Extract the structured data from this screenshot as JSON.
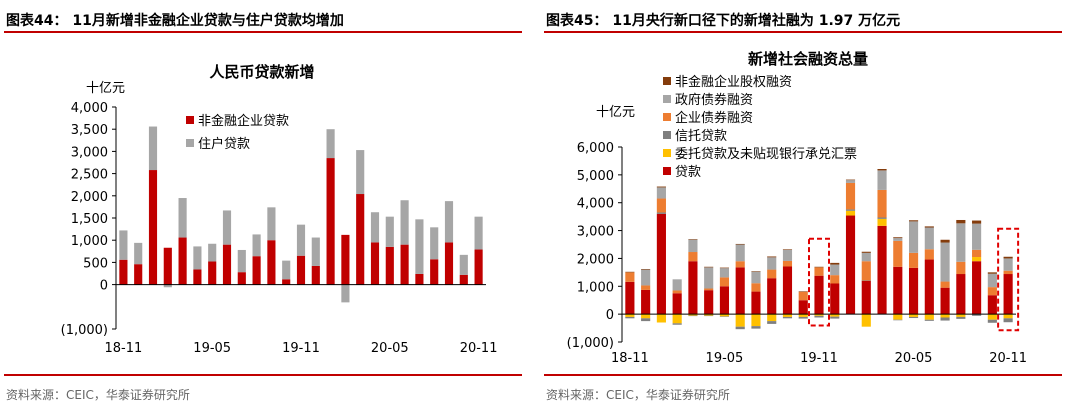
{
  "left": {
    "figure_title": "图表44：  11月新增非金融企业贷款与住户贷款均增加",
    "source": "资料来源：CEIC，华泰证券研究所",
    "chart_data": {
      "type": "bar",
      "stacked": true,
      "title": "人民币贷款新增",
      "ylabel": "十亿元",
      "ylim": [
        -1000,
        4000
      ],
      "yticks": [
        "4,000",
        "3,500",
        "3,000",
        "2,500",
        "2,000",
        "1,500",
        "1,000",
        "500",
        "0",
        "(1,000)"
      ],
      "ytick_values": [
        4000,
        3500,
        3000,
        2500,
        2000,
        1500,
        1000,
        500,
        0,
        -1000
      ],
      "categories": [
        "2018-11",
        "2018-12",
        "2019-01",
        "2019-02",
        "2019-03",
        "2019-04",
        "2019-05",
        "2019-06",
        "2019-07",
        "2019-08",
        "2019-09",
        "2019-10",
        "2019-11",
        "2019-12",
        "2020-01",
        "2020-02",
        "2020-03",
        "2020-04",
        "2020-05",
        "2020-06",
        "2020-07",
        "2020-08",
        "2020-09",
        "2020-10",
        "2020-11"
      ],
      "x_tick_labels": [
        {
          "index": 0,
          "label": "18-11"
        },
        {
          "index": 6,
          "label": "19-05"
        },
        {
          "index": 12,
          "label": "19-11"
        },
        {
          "index": 18,
          "label": "20-05"
        },
        {
          "index": 24,
          "label": "20-11"
        }
      ],
      "series": [
        {
          "name": "非金融企业贷款",
          "color": "#c00000",
          "values": [
            560,
            460,
            2580,
            830,
            1060,
            340,
            520,
            900,
            280,
            640,
            1000,
            120,
            650,
            420,
            2850,
            1120,
            2040,
            950,
            850,
            900,
            240,
            570,
            950,
            220,
            790
          ]
        },
        {
          "name": "住户贷款",
          "color": "#a6a6a6",
          "values": [
            660,
            480,
            980,
            -60,
            890,
            520,
            400,
            770,
            500,
            490,
            740,
            420,
            700,
            640,
            650,
            -400,
            990,
            680,
            680,
            1000,
            1230,
            720,
            930,
            450,
            740
          ]
        }
      ],
      "legend": [
        {
          "label": "非金融企业贷款",
          "color": "#c00000"
        },
        {
          "label": "住户贷款",
          "color": "#a6a6a6"
        }
      ]
    }
  },
  "right": {
    "figure_title": "图表45：  11月央行新口径下的新增社融为 1.97 万亿元",
    "source": "资料来源：CEIC，华泰证券研究所",
    "chart_data": {
      "type": "bar",
      "stacked": true,
      "title": "新增社会融资总量",
      "ylabel": "十亿元",
      "ylim": [
        -1000,
        6000
      ],
      "yticks": [
        "6,000",
        "5,000",
        "4,000",
        "3,000",
        "2,000",
        "1,000",
        "0",
        "(1,000)"
      ],
      "ytick_values": [
        6000,
        5000,
        4000,
        3000,
        2000,
        1000,
        0,
        -1000
      ],
      "categories": [
        "2018-11",
        "2018-12",
        "2019-01",
        "2019-02",
        "2019-03",
        "2019-04",
        "2019-05",
        "2019-06",
        "2019-07",
        "2019-08",
        "2019-09",
        "2019-10",
        "2019-11",
        "2019-12",
        "2020-01",
        "2020-02",
        "2020-03",
        "2020-04",
        "2020-05",
        "2020-06",
        "2020-07",
        "2020-08",
        "2020-09",
        "2020-10",
        "2020-11"
      ],
      "x_tick_labels": [
        {
          "index": 0,
          "label": "18-11"
        },
        {
          "index": 6,
          "label": "19-05"
        },
        {
          "index": 12,
          "label": "19-11"
        },
        {
          "index": 18,
          "label": "20-05"
        },
        {
          "index": 24,
          "label": "20-11"
        }
      ],
      "highlight_indices": [
        12,
        24
      ],
      "series": [
        {
          "name": "贷款",
          "color": "#c00000",
          "values": [
            1160,
            870,
            3600,
            750,
            1900,
            860,
            1000,
            1680,
            810,
            1290,
            1710,
            500,
            1380,
            1100,
            3540,
            1200,
            3170,
            1700,
            1660,
            1960,
            950,
            1440,
            1900,
            680,
            1440
          ]
        },
        {
          "name": "委托贷款及未贴现银行承兑汇票",
          "color": "#ffc000",
          "values": [
            -100,
            -150,
            -300,
            -330,
            -50,
            -50,
            -80,
            -450,
            -430,
            -250,
            -100,
            -100,
            -60,
            -90,
            170,
            -450,
            250,
            -200,
            -100,
            -200,
            -120,
            -100,
            150,
            -200,
            -150
          ]
        },
        {
          "name": "信托贷款",
          "color": "#7f7f7f",
          "values": [
            -50,
            -100,
            50,
            -50,
            -20,
            -20,
            -10,
            -90,
            -90,
            -100,
            -50,
            -60,
            -60,
            -70,
            50,
            10,
            50,
            -20,
            -40,
            -40,
            -110,
            -70,
            -60,
            -110,
            -140
          ]
        },
        {
          "name": "企业债券融资",
          "color": "#ed7d31",
          "values": [
            340,
            160,
            500,
            100,
            330,
            60,
            320,
            220,
            300,
            310,
            200,
            300,
            300,
            300,
            950,
            690,
            990,
            930,
            540,
            370,
            220,
            440,
            260,
            290,
            120
          ]
        },
        {
          "name": "政府债券融资",
          "color": "#a6a6a6",
          "values": [
            0,
            570,
            400,
            400,
            450,
            760,
            330,
            600,
            420,
            440,
            400,
            0,
            0,
            380,
            100,
            300,
            700,
            100,
            1130,
            780,
            1400,
            1380,
            940,
            480,
            440
          ]
        },
        {
          "name": "非金融企业股权融资",
          "color": "#843c0c",
          "values": [
            20,
            20,
            30,
            0,
            10,
            20,
            20,
            20,
            10,
            30,
            20,
            20,
            20,
            60,
            20,
            40,
            50,
            30,
            40,
            40,
            100,
            120,
            110,
            50,
            60
          ]
        }
      ],
      "legend": [
        {
          "label": "非金融企业股权融资",
          "color": "#843c0c"
        },
        {
          "label": "政府债券融资",
          "color": "#a6a6a6"
        },
        {
          "label": "企业债券融资",
          "color": "#ed7d31"
        },
        {
          "label": "信托贷款",
          "color": "#7f7f7f"
        },
        {
          "label": "委托贷款及未贴现银行承兑汇票",
          "color": "#ffc000"
        },
        {
          "label": "贷款",
          "color": "#c00000"
        }
      ]
    }
  }
}
